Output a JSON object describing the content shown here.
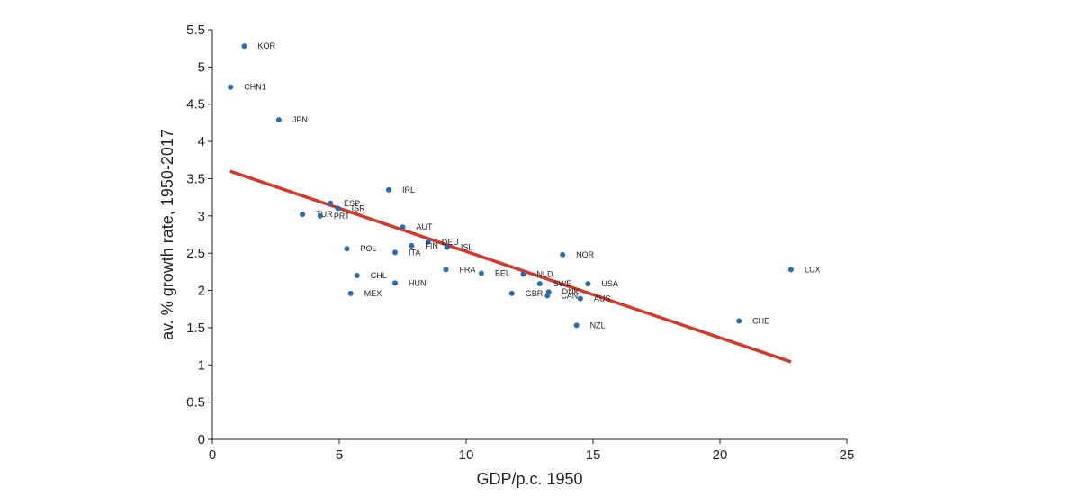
{
  "chart_data": {
    "type": "scatter",
    "xlabel": "GDP/p.c. 1950",
    "ylabel": "av. % growth rate, 1950-2017",
    "xlim": [
      0,
      25
    ],
    "ylim": [
      0,
      5.5
    ],
    "x_ticks": [
      0,
      5,
      10,
      15,
      20,
      25
    ],
    "y_ticks": [
      0,
      0.5,
      1,
      1.5,
      2,
      2.5,
      3,
      3.5,
      4,
      4.5,
      5,
      5.5
    ],
    "x_tick_labels": [
      "0",
      "5",
      "10",
      "15",
      "20",
      "25"
    ],
    "y_tick_labels": [
      "0",
      "0.5",
      "1",
      "1.5",
      "2",
      "2.5",
      "3",
      "3.5",
      "4",
      "4.5",
      "5",
      "5.5"
    ],
    "grid": false,
    "point_color": "#2b6cb0",
    "fit_line_color": "#d03a2b",
    "fit_line": {
      "x": [
        0.7,
        22.8
      ],
      "y": [
        3.6,
        1.04
      ]
    },
    "points": [
      {
        "label": "KOR",
        "x": 1.26,
        "y": 5.28
      },
      {
        "label": "CHN1",
        "x": 0.72,
        "y": 4.73
      },
      {
        "label": "JPN",
        "x": 2.62,
        "y": 4.29
      },
      {
        "label": "IRL",
        "x": 6.95,
        "y": 3.35
      },
      {
        "label": "ESP",
        "x": 4.65,
        "y": 3.17
      },
      {
        "label": "ISR",
        "x": 4.95,
        "y": 3.1
      },
      {
        "label": "TUR",
        "x": 3.55,
        "y": 3.02
      },
      {
        "label": "PRT",
        "x": 4.25,
        "y": 3.0
      },
      {
        "label": "AUT",
        "x": 7.5,
        "y": 2.85
      },
      {
        "label": "DEU",
        "x": 8.5,
        "y": 2.65
      },
      {
        "label": "FIN",
        "x": 7.85,
        "y": 2.6
      },
      {
        "label": "ISL",
        "x": 9.25,
        "y": 2.58
      },
      {
        "label": "ITA",
        "x": 7.2,
        "y": 2.51
      },
      {
        "label": "POL",
        "x": 5.3,
        "y": 2.56
      },
      {
        "label": "NOR",
        "x": 13.8,
        "y": 2.48
      },
      {
        "label": "LUX",
        "x": 22.8,
        "y": 2.28
      },
      {
        "label": "FRA",
        "x": 9.2,
        "y": 2.28
      },
      {
        "label": "BEL",
        "x": 10.6,
        "y": 2.23
      },
      {
        "label": "NLD",
        "x": 12.25,
        "y": 2.22
      },
      {
        "label": "CHL",
        "x": 5.7,
        "y": 2.2
      },
      {
        "label": "SWE",
        "x": 12.9,
        "y": 2.09
      },
      {
        "label": "USA",
        "x": 14.8,
        "y": 2.09
      },
      {
        "label": "HUN",
        "x": 7.2,
        "y": 2.1
      },
      {
        "label": "MEX",
        "x": 5.45,
        "y": 1.96
      },
      {
        "label": "GBR",
        "x": 11.8,
        "y": 1.96
      },
      {
        "label": "DNK",
        "x": 13.25,
        "y": 1.98
      },
      {
        "label": "CAN",
        "x": 13.2,
        "y": 1.93
      },
      {
        "label": "AUS",
        "x": 14.5,
        "y": 1.89
      },
      {
        "label": "CHE",
        "x": 20.75,
        "y": 1.59
      },
      {
        "label": "NZL",
        "x": 14.35,
        "y": 1.53
      }
    ]
  }
}
